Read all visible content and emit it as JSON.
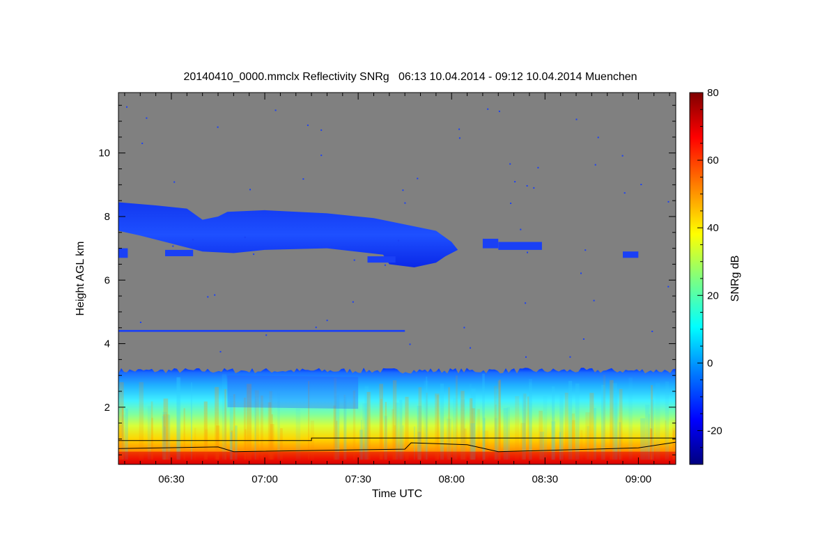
{
  "chart_data": {
    "type": "heatmap",
    "title": "20140410_0000.mmclx Reflectivity SNRg   06:13 10.04.2014 - 09:12 10.04.2014 Muenchen",
    "xlabel": "Time UTC",
    "ylabel": "Height AGL km",
    "x_range": [
      "06:13",
      "09:12"
    ],
    "y_range": [
      0.2,
      11.9
    ],
    "x_ticks": [
      "06:30",
      "07:00",
      "07:30",
      "08:00",
      "08:30",
      "09:00"
    ],
    "y_ticks": [
      2,
      4,
      6,
      8,
      10
    ],
    "colorbar": {
      "label": "SNRg dB",
      "range": [
        -30,
        80
      ],
      "ticks": [
        80,
        60,
        40,
        20,
        0,
        -20
      ]
    },
    "background_color": "#808080",
    "colormap": [
      "#00007f",
      "#0000ff",
      "#007fff",
      "#00ffff",
      "#7fff7f",
      "#ffff00",
      "#ff7f00",
      "#ff0000",
      "#7f0000"
    ],
    "features": [
      {
        "name": "upper cloud layer",
        "time_start": "06:13",
        "time_end": "08:30",
        "base_km": 6.5,
        "top_km": 8.5,
        "snr_db": -18
      },
      {
        "name": "boundary layer echo",
        "time_start": "06:13",
        "time_end": "09:12",
        "base_km": 0.2,
        "top_km": 3.2,
        "snr_db_surface": 75,
        "snr_db_top": 0
      }
    ],
    "lines": [
      {
        "name": "upper line",
        "points": [
          [
            "06:13",
            0.95
          ],
          [
            "07:15",
            0.95
          ],
          [
            "07:15",
            1.03
          ],
          [
            "09:12",
            1.03
          ]
        ]
      },
      {
        "name": "lower line",
        "points": [
          [
            "06:13",
            0.7
          ],
          [
            "06:45",
            0.75
          ],
          [
            "06:50",
            0.6
          ],
          [
            "07:45",
            0.68
          ],
          [
            "07:47",
            0.88
          ],
          [
            "08:05",
            0.82
          ],
          [
            "08:15",
            0.6
          ],
          [
            "09:00",
            0.72
          ],
          [
            "09:12",
            0.9
          ]
        ]
      }
    ]
  }
}
